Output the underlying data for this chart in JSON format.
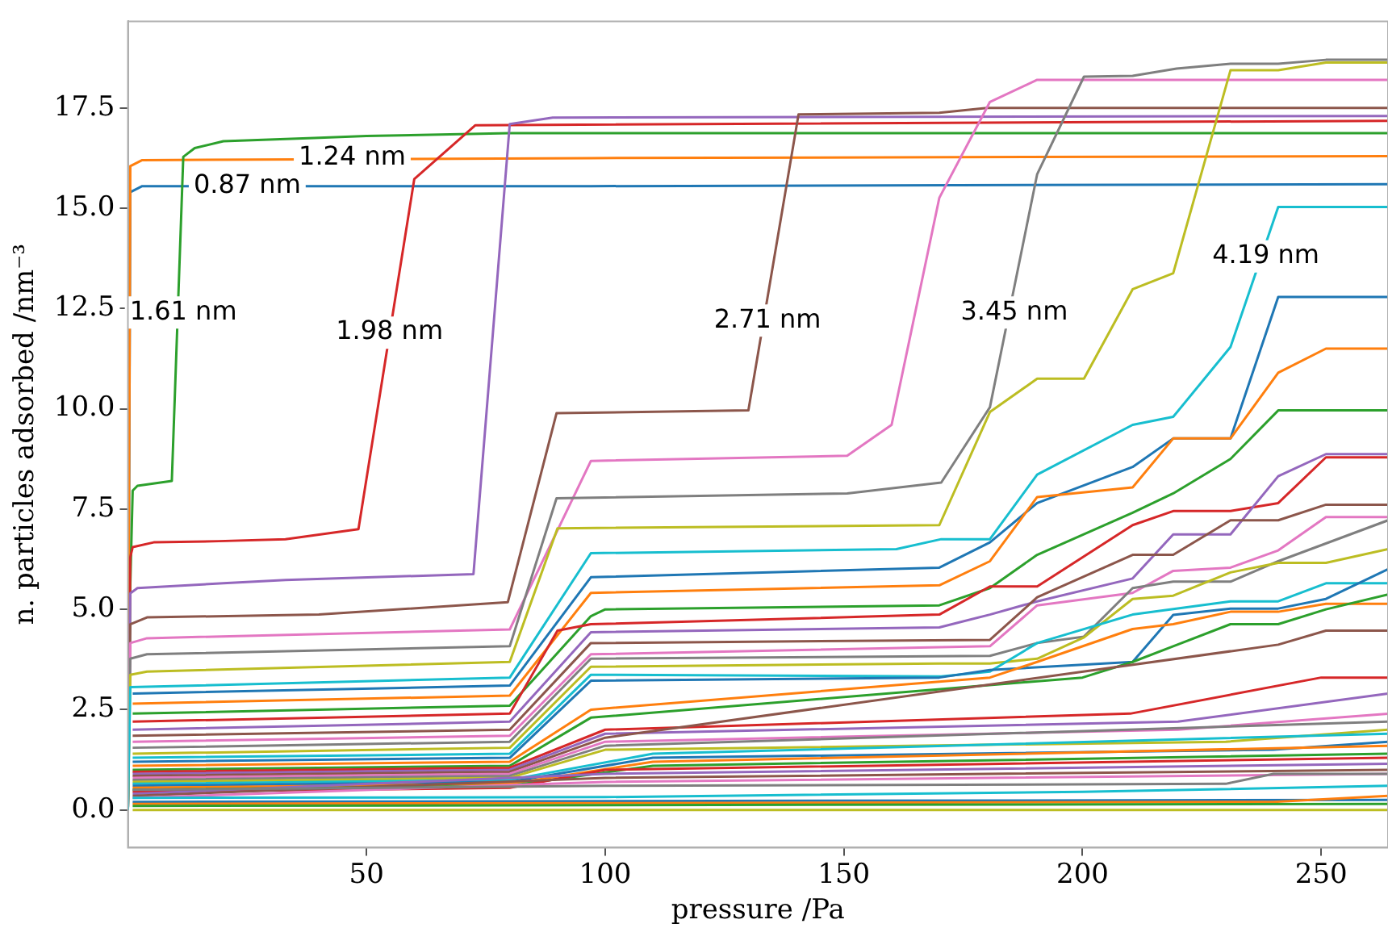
{
  "chart_data": {
    "type": "line",
    "xlabel": "pressure /Pa",
    "ylabel": "n. particles adsorbed /nm⁻³",
    "xlim": [
      0,
      264
    ],
    "ylim": [
      -0.94,
      19.66
    ],
    "xticks": [
      50,
      100,
      150,
      200,
      250
    ],
    "yticks": [
      {
        "value": 0,
        "label": "0.0"
      },
      {
        "value": 2.5,
        "label": "2.5"
      },
      {
        "value": 5,
        "label": "5.0"
      },
      {
        "value": 7.5,
        "label": "7.5"
      },
      {
        "value": 10,
        "label": "10.0"
      },
      {
        "value": 12.5,
        "label": "12.5"
      },
      {
        "value": 15,
        "label": "15.0"
      },
      {
        "value": 17.5,
        "label": "17.5"
      }
    ],
    "grid": false,
    "legend": false,
    "annotations": [
      {
        "text": "0.87 nm",
        "x": 25,
        "y": 15.55
      },
      {
        "text": "1.24 nm",
        "x": 47,
        "y": 16.25
      },
      {
        "text": "1.61 nm",
        "x": 11.6,
        "y": 12.4
      },
      {
        "text": "1.98 nm",
        "x": 54.8,
        "y": 11.9
      },
      {
        "text": "2.71 nm",
        "x": 134,
        "y": 12.2
      },
      {
        "text": "3.45 nm",
        "x": 185.7,
        "y": 12.4
      },
      {
        "text": "4.19 nm",
        "x": 238.4,
        "y": 13.8
      }
    ],
    "series": [
      {
        "color": "#1f77b4",
        "x": [
          0,
          0.5,
          3,
          97,
          264
        ],
        "values": [
          0,
          15.4,
          15.55,
          15.55,
          15.6
        ]
      },
      {
        "color": "#ff7f0e",
        "x": [
          0,
          0.5,
          3,
          97,
          264
        ],
        "values": [
          0,
          16.05,
          16.2,
          16.25,
          16.3
        ]
      },
      {
        "color": "#2ca02c",
        "x": [
          0,
          0.5,
          1,
          2,
          9.2,
          11.6,
          14,
          20,
          39,
          50,
          80,
          264
        ],
        "values": [
          0,
          5.6,
          7.96,
          8.08,
          8.2,
          16.28,
          16.5,
          16.67,
          16.75,
          16.8,
          16.87,
          16.87
        ]
      },
      {
        "color": "#d62728",
        "x": [
          0,
          0.5,
          1,
          5.4,
          19,
          33,
          48.3,
          60,
          72.8,
          264
        ],
        "values": [
          0,
          6.3,
          6.55,
          6.67,
          6.7,
          6.75,
          7.0,
          15.73,
          17.07,
          17.18
        ]
      },
      {
        "color": "#9467bd",
        "x": [
          0,
          0.5,
          2,
          20,
          33,
          72.4,
          80,
          89,
          264
        ],
        "values": [
          0,
          5.4,
          5.53,
          5.65,
          5.73,
          5.88,
          17.1,
          17.26,
          17.3
        ]
      },
      {
        "color": "#8c564b",
        "x": [
          0,
          0.5,
          4,
          40,
          79.6,
          89.8,
          130,
          140.5,
          170,
          180,
          264
        ],
        "values": [
          0,
          4.63,
          4.8,
          4.87,
          5.18,
          9.89,
          9.96,
          17.34,
          17.38,
          17.5,
          17.5
        ]
      },
      {
        "color": "#e377c2",
        "x": [
          0,
          0.5,
          4,
          80,
          97,
          150.7,
          160,
          170,
          180.6,
          190.5,
          264
        ],
        "values": [
          0,
          4.16,
          4.28,
          4.5,
          8.7,
          8.83,
          9.6,
          15.26,
          17.65,
          18.2,
          18.2
        ]
      },
      {
        "color": "#7f7f7f",
        "x": [
          0,
          0.5,
          4,
          80,
          89.8,
          150.7,
          170.4,
          180.6,
          190.5,
          200.3,
          210.5,
          219.7,
          231,
          241,
          251,
          264
        ],
        "values": [
          0,
          3.77,
          3.88,
          4.08,
          7.77,
          7.89,
          8.16,
          10.04,
          15.85,
          18.28,
          18.3,
          18.48,
          18.6,
          18.6,
          18.7,
          18.7
        ]
      },
      {
        "color": "#bcbd22",
        "x": [
          0,
          0.5,
          4,
          80,
          90,
          170,
          180.6,
          190.5,
          200.3,
          210.5,
          219,
          231,
          241,
          251,
          264
        ],
        "values": [
          0,
          3.37,
          3.45,
          3.69,
          7.02,
          7.1,
          9.92,
          10.75,
          10.75,
          12.98,
          13.38,
          18.44,
          18.44,
          18.63,
          18.63
        ]
      },
      {
        "color": "#17becf",
        "x": [
          0,
          0.5,
          80,
          97,
          161,
          170.4,
          180.6,
          190.5,
          210.5,
          219,
          231,
          241,
          264
        ],
        "values": [
          0,
          3.06,
          3.3,
          6.4,
          6.5,
          6.75,
          6.75,
          8.36,
          9.6,
          9.8,
          11.54,
          15.03,
          15.03
        ]
      },
      {
        "color": "#1f77b4",
        "x": [
          1,
          80,
          97,
          170,
          180.6,
          190.5,
          210.5,
          219,
          231,
          241,
          264
        ],
        "values": [
          2.9,
          3.1,
          5.8,
          6.04,
          6.67,
          7.65,
          8.55,
          9.26,
          9.26,
          12.79,
          12.79
        ]
      },
      {
        "color": "#ff7f0e",
        "x": [
          1,
          80,
          97,
          170,
          180.6,
          190.5,
          210.5,
          219,
          231,
          241,
          251,
          264
        ],
        "values": [
          2.65,
          2.85,
          5.41,
          5.6,
          6.2,
          7.8,
          8.04,
          9.26,
          9.26,
          10.9,
          11.5,
          11.5
        ]
      },
      {
        "color": "#2ca02c",
        "x": [
          1,
          80,
          97,
          100,
          170,
          180.6,
          190.5,
          210.5,
          219,
          231,
          241,
          264
        ],
        "values": [
          2.4,
          2.6,
          4.83,
          5.0,
          5.1,
          5.53,
          6.36,
          7.41,
          7.89,
          8.75,
          9.96,
          9.96
        ]
      },
      {
        "color": "#d62728",
        "x": [
          1,
          80,
          90,
          97,
          170,
          180.6,
          190.5,
          210.5,
          219,
          231,
          241,
          251,
          264
        ],
        "values": [
          2.2,
          2.4,
          4.47,
          4.63,
          4.87,
          5.57,
          5.57,
          7.1,
          7.45,
          7.45,
          7.65,
          8.79,
          8.79
        ]
      },
      {
        "color": "#9467bd",
        "x": [
          1,
          80,
          97,
          170,
          180.6,
          190.5,
          210.5,
          219,
          231,
          241,
          251,
          264
        ],
        "values": [
          2.0,
          2.2,
          4.43,
          4.55,
          4.87,
          5.2,
          5.77,
          6.87,
          6.87,
          8.32,
          8.87,
          8.87
        ]
      },
      {
        "color": "#8c564b",
        "x": [
          1,
          80,
          97,
          180.6,
          190.5,
          210.5,
          219,
          231,
          241,
          251,
          264
        ],
        "values": [
          1.85,
          2.0,
          4.16,
          4.24,
          5.3,
          6.36,
          6.36,
          7.22,
          7.22,
          7.61,
          7.61
        ]
      },
      {
        "color": "#e377c2",
        "x": [
          1,
          80,
          97,
          180.6,
          190.5,
          210.5,
          219,
          231,
          241,
          251,
          264
        ],
        "values": [
          1.7,
          1.85,
          3.88,
          4.08,
          5.1,
          5.41,
          5.96,
          6.04,
          6.47,
          7.3,
          7.3
        ]
      },
      {
        "color": "#7f7f7f",
        "x": [
          1,
          80,
          97,
          180.6,
          190.5,
          200.3,
          210.5,
          219,
          231,
          241,
          264
        ],
        "values": [
          1.55,
          1.7,
          3.77,
          3.84,
          4.16,
          4.32,
          5.53,
          5.69,
          5.69,
          6.2,
          7.22
        ]
      },
      {
        "color": "#bcbd22",
        "x": [
          1,
          80,
          97,
          170,
          180.6,
          190.5,
          200.3,
          210.5,
          219,
          231,
          241,
          251,
          264
        ],
        "values": [
          1.4,
          1.55,
          3.57,
          3.65,
          3.65,
          3.77,
          4.3,
          5.26,
          5.34,
          5.92,
          6.16,
          6.16,
          6.5
        ]
      },
      {
        "color": "#17becf",
        "x": [
          1,
          80,
          97,
          170.4,
          180.6,
          190.5,
          210.5,
          231,
          241,
          251,
          264
        ],
        "values": [
          1.3,
          1.4,
          3.37,
          3.33,
          3.45,
          4.16,
          4.87,
          5.2,
          5.2,
          5.65,
          5.65
        ]
      },
      {
        "color": "#1f77b4",
        "x": [
          1,
          80,
          97,
          170,
          180.6,
          210.5,
          219,
          231,
          241,
          251,
          264
        ],
        "values": [
          1.2,
          1.3,
          3.22,
          3.3,
          3.49,
          3.69,
          4.86,
          5.02,
          5.02,
          5.26,
          6.0
        ]
      },
      {
        "color": "#ff7f0e",
        "x": [
          1,
          80,
          97,
          180.6,
          190.5,
          210.5,
          219,
          231,
          241,
          251,
          264
        ],
        "values": [
          1.1,
          1.2,
          2.5,
          3.3,
          3.69,
          4.51,
          4.63,
          4.94,
          4.94,
          5.14,
          5.14
        ]
      },
      {
        "color": "#2ca02c",
        "x": [
          1,
          80,
          97,
          200,
          210.5,
          219,
          231,
          241,
          251,
          264
        ],
        "values": [
          1.0,
          1.1,
          2.3,
          3.3,
          3.69,
          4.08,
          4.63,
          4.63,
          5.0,
          5.37
        ]
      },
      {
        "color": "#d62728",
        "x": [
          1,
          80,
          100,
          210,
          250,
          264
        ],
        "values": [
          0.95,
          1.05,
          2.0,
          2.4,
          3.3,
          3.3
        ]
      },
      {
        "color": "#9467bd",
        "x": [
          1,
          80,
          100,
          220,
          264
        ],
        "values": [
          0.9,
          1.0,
          1.9,
          2.2,
          2.9
        ]
      },
      {
        "color": "#8c564b",
        "x": [
          1,
          80,
          100,
          241,
          251,
          264
        ],
        "values": [
          0.85,
          0.95,
          1.8,
          4.12,
          4.47,
          4.47
        ]
      },
      {
        "color": "#e377c2",
        "x": [
          1,
          80,
          100,
          220,
          264
        ],
        "values": [
          0.8,
          0.9,
          1.7,
          2.0,
          2.4
        ]
      },
      {
        "color": "#7f7f7f",
        "x": [
          1,
          80,
          100,
          264
        ],
        "values": [
          0.75,
          0.85,
          1.6,
          2.2
        ]
      },
      {
        "color": "#bcbd22",
        "x": [
          1,
          80,
          100,
          230,
          264
        ],
        "values": [
          0.7,
          0.8,
          1.5,
          1.7,
          2.0
        ]
      },
      {
        "color": "#17becf",
        "x": [
          1,
          80,
          110,
          264
        ],
        "values": [
          0.65,
          0.75,
          1.4,
          1.9
        ]
      },
      {
        "color": "#1f77b4",
        "x": [
          1,
          80,
          110,
          240,
          264
        ],
        "values": [
          0.6,
          0.7,
          1.3,
          1.5,
          1.7
        ]
      },
      {
        "color": "#ff7f0e",
        "x": [
          1,
          80,
          110,
          264
        ],
        "values": [
          0.55,
          0.65,
          1.2,
          1.6
        ]
      },
      {
        "color": "#2ca02c",
        "x": [
          1,
          80,
          110,
          264
        ],
        "values": [
          0.5,
          0.6,
          1.1,
          1.4
        ]
      },
      {
        "color": "#d62728",
        "x": [
          1,
          80,
          100,
          264
        ],
        "values": [
          0.45,
          0.55,
          1.0,
          1.3
        ]
      },
      {
        "color": "#9467bd",
        "x": [
          1,
          100,
          264
        ],
        "values": [
          0.4,
          0.9,
          1.15
        ]
      },
      {
        "color": "#8c564b",
        "x": [
          1,
          100,
          264
        ],
        "values": [
          0.35,
          0.8,
          1.0
        ]
      },
      {
        "color": "#e377c2",
        "x": [
          1,
          100,
          264
        ],
        "values": [
          0.3,
          0.7,
          0.9
        ]
      },
      {
        "color": "#7f7f7f",
        "x": [
          1,
          100,
          230,
          240,
          264
        ],
        "values": [
          0.5,
          0.6,
          0.65,
          0.9,
          0.9
        ]
      },
      {
        "color": "#bcbd22",
        "x": [
          1,
          264
        ],
        "values": [
          0.0,
          0.0
        ]
      },
      {
        "color": "#17becf",
        "x": [
          1,
          100,
          200,
          264
        ],
        "values": [
          0.3,
          0.32,
          0.45,
          0.6
        ]
      },
      {
        "color": "#1f77b4",
        "x": [
          1,
          264
        ],
        "values": [
          0.2,
          0.25
        ]
      },
      {
        "color": "#ff7f0e",
        "x": [
          1,
          240,
          264
        ],
        "values": [
          0.15,
          0.2,
          0.35
        ]
      },
      {
        "color": "#2ca02c",
        "x": [
          1,
          264
        ],
        "values": [
          0.1,
          0.15
        ]
      }
    ]
  }
}
